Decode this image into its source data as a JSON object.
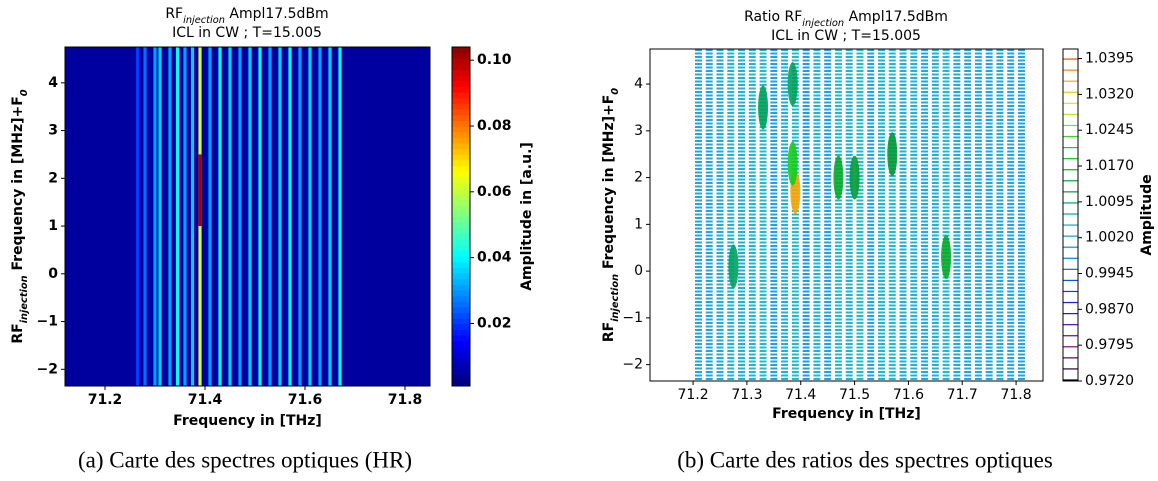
{
  "chart_data": [
    {
      "type": "heatmap",
      "title": [
        "RF",
        "injection",
        " Ampl17.5dBm"
      ],
      "subtitle": "ICL in CW ; T=15.005",
      "xlabel": "Frequency in [THz]",
      "ylabel": [
        "RF",
        "injection",
        " Frequency in [MHz]+F",
        "0"
      ],
      "xlim": [
        71.12,
        71.85
      ],
      "ylim": [
        -2.35,
        4.75
      ],
      "xticks": [
        71.2,
        71.4,
        71.6,
        71.8
      ],
      "yticks": [
        {
          "value": -2,
          "label": "−2"
        },
        {
          "value": -1,
          "label": "−1"
        },
        0,
        1,
        2,
        3,
        4
      ],
      "x": [
        71.265,
        71.28,
        71.3,
        71.31,
        71.33,
        71.345,
        71.36,
        71.375,
        71.39,
        71.41,
        71.43,
        71.45,
        71.47,
        71.49,
        71.51,
        71.53,
        71.55,
        71.57,
        71.59,
        71.61,
        71.63,
        71.65,
        71.67
      ],
      "values": [
        0.02,
        0.025,
        0.03,
        0.035,
        0.03,
        0.04,
        0.03,
        0.035,
        0.06,
        0.03,
        0.04,
        0.035,
        0.03,
        0.035,
        0.04,
        0.03,
        0.035,
        0.04,
        0.03,
        0.035,
        0.03,
        0.035,
        0.04
      ],
      "peak": {
        "x": 71.39,
        "y": [
          1.0,
          2.5
        ],
        "value": 0.1
      },
      "colorbar": {
        "label": "Amplitude in [a.u.]",
        "clim": [
          0.001,
          0.104
        ],
        "ticks": [
          0.02,
          0.04,
          0.06,
          0.08,
          {
            "value": 0.1,
            "label": "0.10"
          }
        ]
      },
      "caption": "(a) Carte des spectres optiques (HR)"
    },
    {
      "type": "contour",
      "title": [
        "Ratio RF",
        "injection",
        " Ampl17.5dBm"
      ],
      "subtitle": "ICL in CW ; T=15.005",
      "xlabel": "Frequency in [THz]",
      "ylabel": [
        "RF",
        "injection",
        " Frequency in [MHz]+F",
        "0"
      ],
      "xlim": [
        71.12,
        71.85
      ],
      "ylim": [
        -2.35,
        4.75
      ],
      "xticks": [
        71.2,
        71.3,
        71.4,
        71.5,
        71.6,
        71.7,
        71.8
      ],
      "yticks": [
        {
          "value": -2,
          "label": "−2"
        },
        {
          "value": -1,
          "label": "−1"
        },
        0,
        1,
        2,
        3,
        4
      ],
      "x": [
        71.21,
        71.23,
        71.25,
        71.27,
        71.29,
        71.31,
        71.33,
        71.35,
        71.37,
        71.39,
        71.41,
        71.43,
        71.45,
        71.47,
        71.49,
        71.51,
        71.53,
        71.55,
        71.57,
        71.59,
        71.61,
        71.63,
        71.65,
        71.67,
        71.69,
        71.71,
        71.73,
        71.75,
        71.77,
        71.79,
        71.81
      ],
      "values": [
        1.0,
        1.0,
        1.001,
        1.003,
        1.002,
        1.003,
        1.004,
        0.999,
        1.002,
        1.004,
        0.998,
        1.003,
        0.999,
        1.004,
        1.002,
        1.005,
        0.999,
        1.003,
        1.004,
        1.002,
        1.003,
        1.001,
        1.002,
        1.004,
        1.001,
        1.0,
        1.001,
        1.0,
        1.001,
        1.0,
        1.0
      ],
      "blobs": {
        "x": [
          71.39,
          71.385,
          71.47,
          71.5,
          71.57,
          71.67,
          71.275,
          71.33,
          71.385
        ],
        "y": [
          1.7,
          2.3,
          2.0,
          2.0,
          2.5,
          0.3,
          0.1,
          3.5,
          4.0
        ],
        "values": [
          1.035,
          1.02,
          1.015,
          1.012,
          1.012,
          1.015,
          1.01,
          1.01,
          1.01
        ]
      },
      "colorbar": {
        "label": "Amplitude",
        "clim": [
          0.972,
          1.0415
        ],
        "ticks": [
          {
            "value": 0.972,
            "label": "0.9720"
          },
          0.9795,
          {
            "value": 0.987,
            "label": "0.9870"
          },
          0.9945,
          {
            "value": 1.002,
            "label": "1.0020"
          },
          1.0095,
          {
            "value": 1.017,
            "label": "1.0170"
          },
          1.0245,
          {
            "value": 1.032,
            "label": "1.0320"
          },
          1.0395
        ]
      },
      "caption": "(b) Carte des ratios des spectres optiques"
    }
  ]
}
